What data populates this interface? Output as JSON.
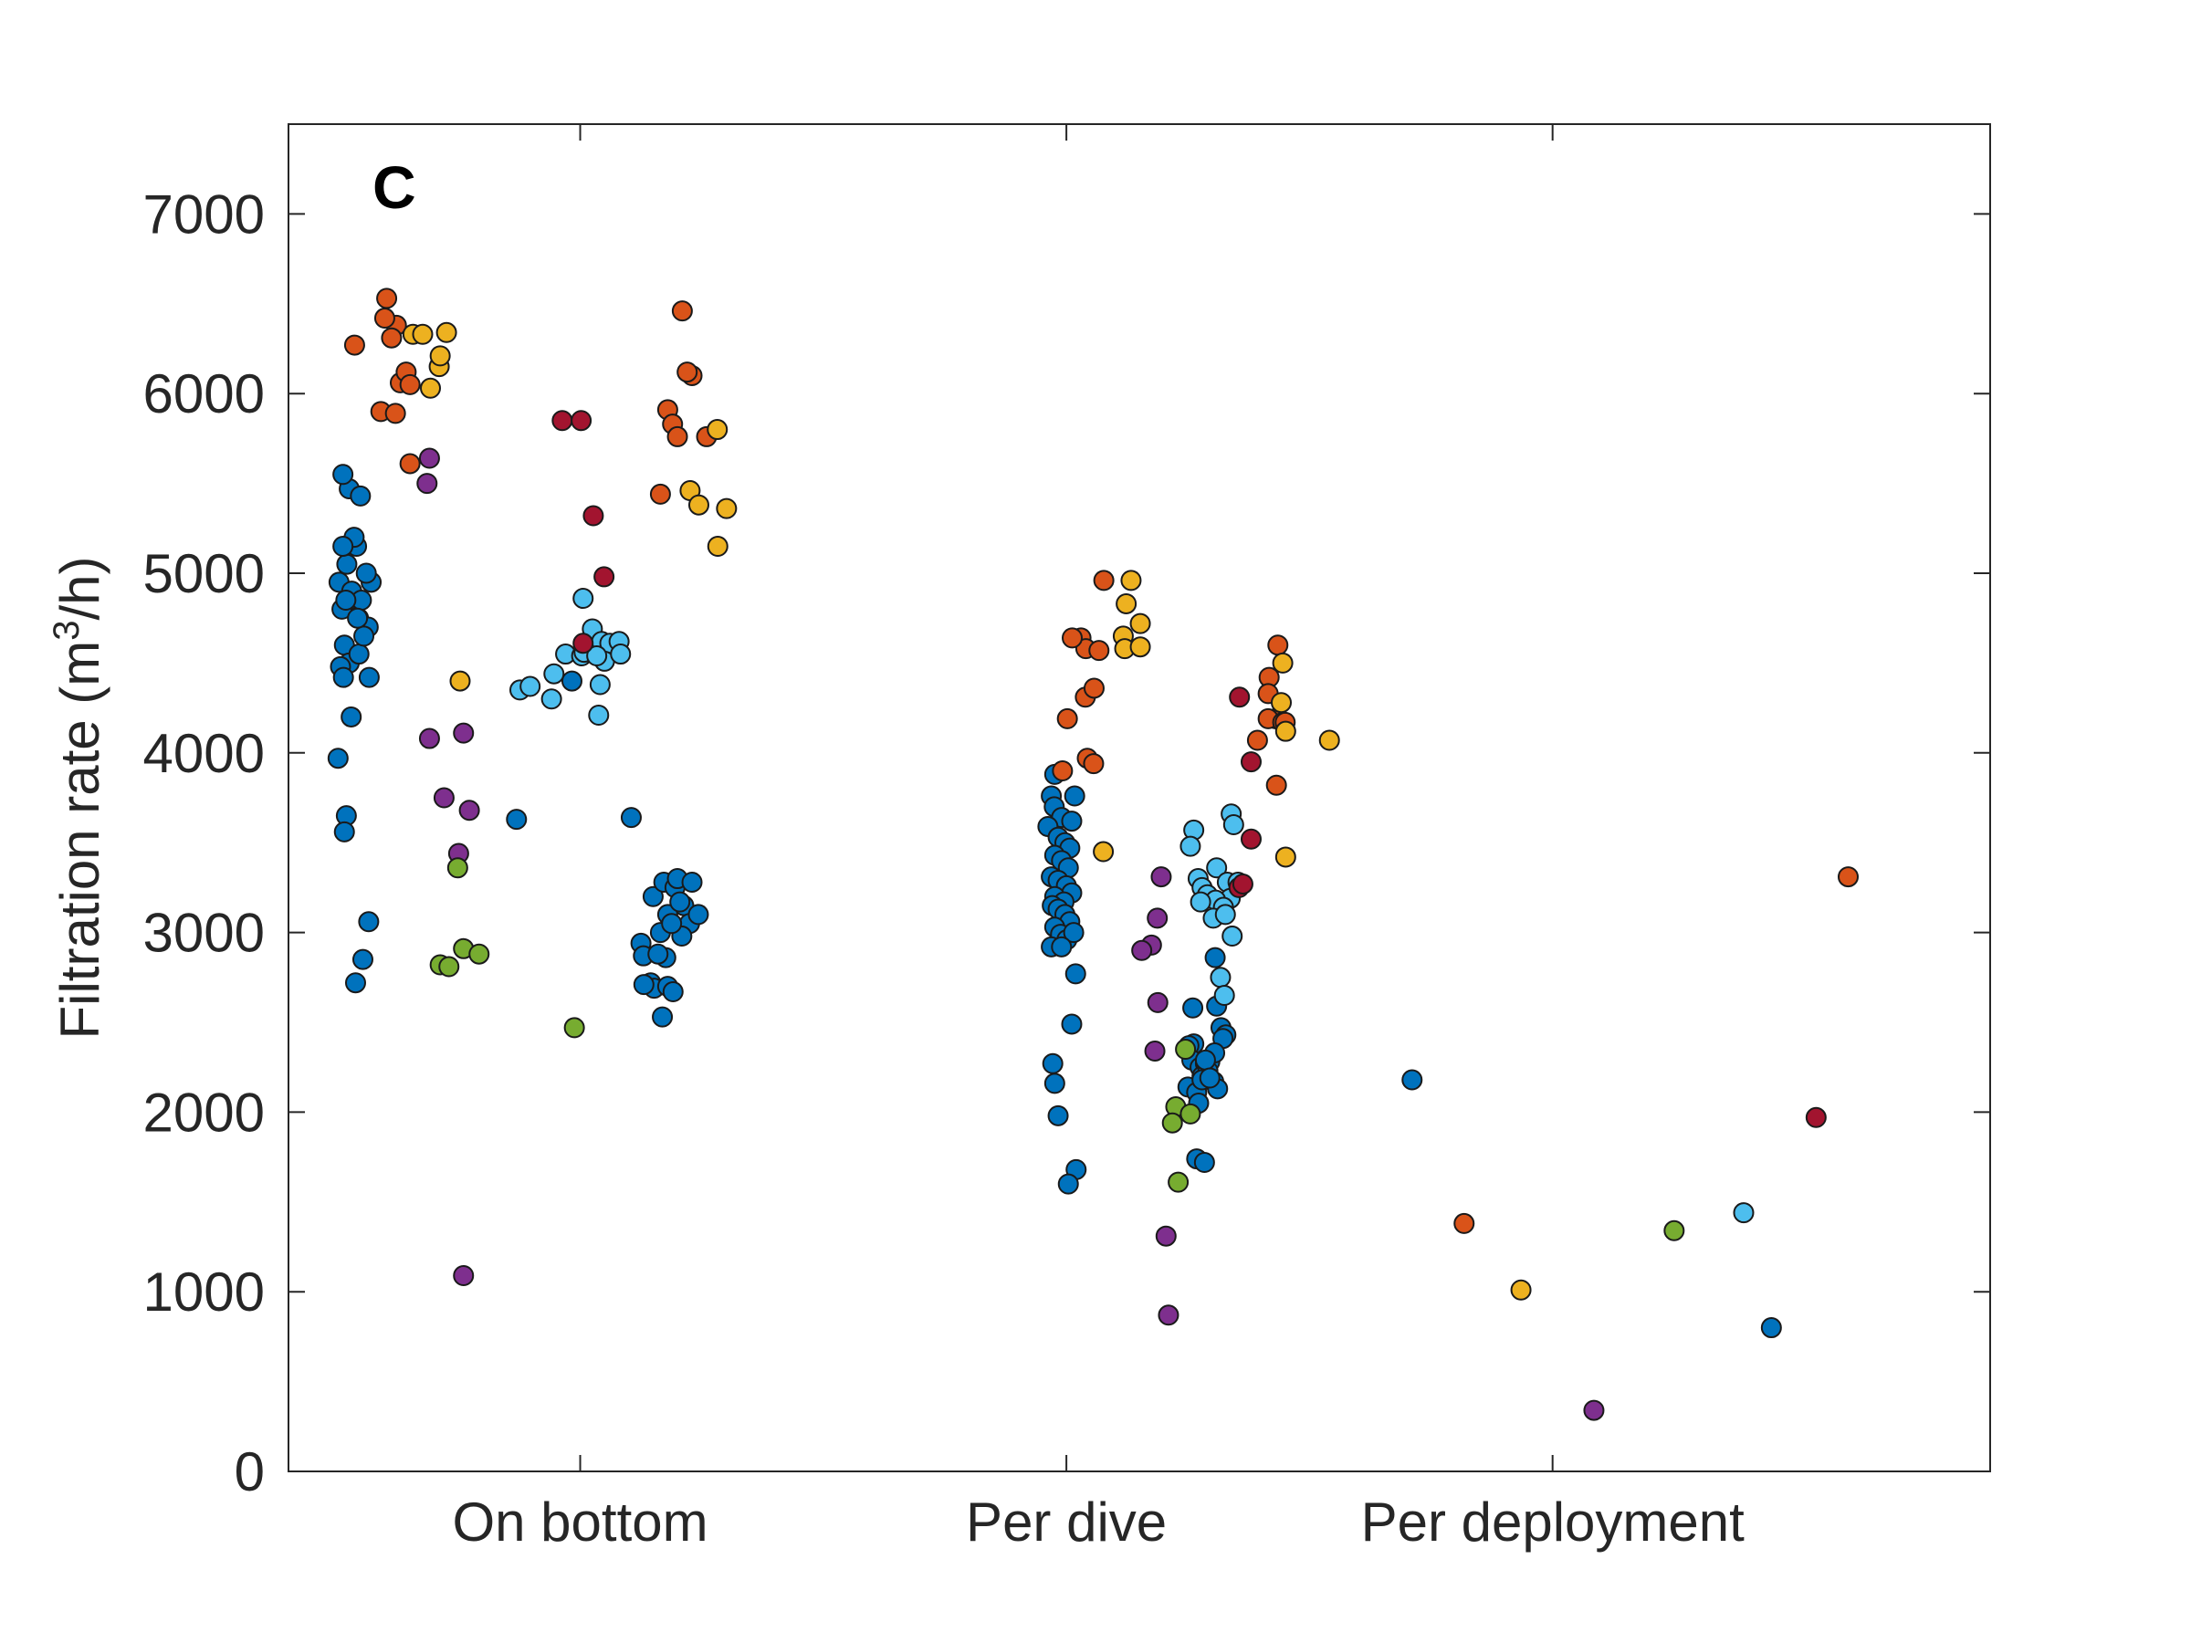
{
  "chart_data": {
    "type": "scatter",
    "panel_label": "C",
    "ylabel_prefix": "Filtration rate (m",
    "ylabel_sup": "3",
    "ylabel_suffix": "/h)",
    "categories": [
      "On bottom",
      "Per dive",
      "Per deployment"
    ],
    "xlim": [
      0.4,
      3.9
    ],
    "ylim": [
      0,
      7500
    ],
    "yticks": [
      0,
      1000,
      2000,
      3000,
      4000,
      5000,
      6000,
      7000
    ],
    "grid": false,
    "colors": {
      "blue": "#0072bd",
      "orange": "#d95319",
      "yellow": "#edb120",
      "purple": "#7e2f8e",
      "green": "#77ac30",
      "lightblue": "#4dbeee",
      "red": "#a2142f"
    },
    "series": [
      {
        "color": "blue",
        "points": [
          [
            0.504,
            4950
          ],
          [
            0.524,
            4850
          ],
          [
            0.544,
            4750
          ],
          [
            0.564,
            4700
          ],
          [
            0.51,
            4800
          ],
          [
            0.53,
            4900
          ],
          [
            0.55,
            4850
          ],
          [
            0.57,
            4950
          ],
          [
            0.52,
            5050
          ],
          [
            0.54,
            5150
          ],
          [
            0.56,
            5000
          ],
          [
            0.535,
            5200
          ],
          [
            0.515,
            4600
          ],
          [
            0.525,
            4500
          ],
          [
            0.545,
            4550
          ],
          [
            0.555,
            4650
          ],
          [
            0.518,
            4850
          ],
          [
            0.542,
            4750
          ],
          [
            0.566,
            4420
          ],
          [
            0.507,
            4480
          ],
          [
            0.513,
            4420
          ],
          [
            0.529,
            4200
          ],
          [
            0.502,
            3970
          ],
          [
            0.519,
            3650
          ],
          [
            0.515,
            3560
          ],
          [
            0.512,
            5150
          ],
          [
            0.525,
            5470
          ],
          [
            0.548,
            5430
          ],
          [
            0.512,
            5550
          ],
          [
            0.565,
            3060
          ],
          [
            0.553,
            2850
          ],
          [
            0.538,
            2720
          ],
          [
            0.983,
            4400
          ],
          [
            0.869,
            3630
          ],
          [
            1.105,
            3640
          ],
          [
            1.15,
            3200
          ],
          [
            1.172,
            3280
          ],
          [
            1.195,
            3250
          ],
          [
            1.213,
            3150
          ],
          [
            1.225,
            3050
          ],
          [
            1.18,
            3100
          ],
          [
            1.2,
            3300
          ],
          [
            1.165,
            3000
          ],
          [
            1.209,
            2980
          ],
          [
            1.188,
            3050
          ],
          [
            1.23,
            3280
          ],
          [
            1.243,
            3100
          ],
          [
            1.205,
            3170
          ],
          [
            1.145,
            2720
          ],
          [
            1.152,
            2690
          ],
          [
            1.176,
            2860
          ],
          [
            1.18,
            2700
          ],
          [
            1.191,
            2670
          ],
          [
            1.169,
            2530
          ],
          [
            1.131,
            2710
          ],
          [
            1.125,
            2940
          ],
          [
            1.13,
            2870
          ],
          [
            1.16,
            2880
          ],
          [
            1.976,
            3880
          ],
          [
            1.969,
            3760
          ],
          [
            1.975,
            3700
          ],
          [
            1.99,
            3640
          ],
          [
            2.011,
            3620
          ],
          [
            1.962,
            3590
          ],
          [
            1.983,
            3530
          ],
          [
            1.997,
            3500
          ],
          [
            2.007,
            3470
          ],
          [
            1.976,
            3430
          ],
          [
            1.99,
            3400
          ],
          [
            2.004,
            3360
          ],
          [
            1.969,
            3310
          ],
          [
            1.983,
            3290
          ],
          [
            2.0,
            3260
          ],
          [
            2.011,
            3220
          ],
          [
            1.976,
            3200
          ],
          [
            1.995,
            3170
          ],
          [
            1.971,
            3150
          ],
          [
            1.983,
            3130
          ],
          [
            1.997,
            3100
          ],
          [
            2.007,
            3060
          ],
          [
            1.976,
            3030
          ],
          [
            1.988,
            2990
          ],
          [
            2.001,
            2960
          ],
          [
            2.015,
            3000
          ],
          [
            1.969,
            2920
          ],
          [
            1.99,
            2920
          ],
          [
            2.019,
            2770
          ],
          [
            2.011,
            2490
          ],
          [
            1.972,
            2270
          ],
          [
            1.976,
            2160
          ],
          [
            1.983,
            1980
          ],
          [
            2.02,
            1680
          ],
          [
            2.004,
            1600
          ],
          [
            2.017,
            3760
          ],
          [
            2.306,
            2860
          ],
          [
            2.309,
            2590
          ],
          [
            2.26,
            2580
          ],
          [
            2.262,
            2380
          ],
          [
            2.318,
            2470
          ],
          [
            2.328,
            2430
          ],
          [
            2.322,
            2410
          ],
          [
            2.252,
            2370
          ],
          [
            2.258,
            2290
          ],
          [
            2.275,
            2250
          ],
          [
            2.286,
            2270
          ],
          [
            2.295,
            2280
          ],
          [
            2.305,
            2330
          ],
          [
            2.25,
            2140
          ],
          [
            2.268,
            2110
          ],
          [
            2.279,
            2200
          ],
          [
            2.291,
            2230
          ],
          [
            2.303,
            2170
          ],
          [
            2.311,
            2130
          ],
          [
            2.272,
            2050
          ],
          [
            2.268,
            1740
          ],
          [
            2.284,
            1720
          ],
          [
            2.286,
            2290
          ],
          [
            2.279,
            2180
          ],
          [
            2.295,
            2190
          ],
          [
            2.711,
            2180
          ],
          [
            3.45,
            800
          ]
        ]
      },
      {
        "color": "orange",
        "points": [
          [
            0.536,
            6270
          ],
          [
            0.602,
            6530
          ],
          [
            0.622,
            6380
          ],
          [
            0.598,
            6420
          ],
          [
            0.612,
            6310
          ],
          [
            0.63,
            6060
          ],
          [
            0.642,
            6120
          ],
          [
            0.65,
            6050
          ],
          [
            0.59,
            5900
          ],
          [
            0.62,
            5890
          ],
          [
            0.65,
            5610
          ],
          [
            1.21,
            6460
          ],
          [
            1.18,
            5910
          ],
          [
            1.19,
            5830
          ],
          [
            1.2,
            5760
          ],
          [
            1.23,
            6100
          ],
          [
            1.22,
            6120
          ],
          [
            1.165,
            5440
          ],
          [
            1.26,
            5760
          ],
          [
            2.077,
            4960
          ],
          [
            2.03,
            4640
          ],
          [
            2.04,
            4580
          ],
          [
            2.067,
            4570
          ],
          [
            2.039,
            4310
          ],
          [
            2.057,
            4360
          ],
          [
            2.002,
            4190
          ],
          [
            1.992,
            3900
          ],
          [
            2.043,
            3970
          ],
          [
            2.056,
            3940
          ],
          [
            2.012,
            4640
          ],
          [
            2.435,
            4600
          ],
          [
            2.417,
            4420
          ],
          [
            2.415,
            4330
          ],
          [
            2.43,
            4190
          ],
          [
            2.415,
            4190
          ],
          [
            2.445,
            4170
          ],
          [
            2.45,
            4170
          ],
          [
            2.432,
            3820
          ],
          [
            2.393,
            4070
          ],
          [
            2.818,
            1380
          ],
          [
            3.608,
            3310
          ]
        ]
      },
      {
        "color": "yellow",
        "points": [
          [
            0.656,
            6330
          ],
          [
            0.676,
            6330
          ],
          [
            0.692,
            6030
          ],
          [
            0.71,
            6150
          ],
          [
            0.712,
            6210
          ],
          [
            0.725,
            6340
          ],
          [
            1.226,
            5460
          ],
          [
            1.282,
            5800
          ],
          [
            1.244,
            5380
          ],
          [
            1.301,
            5360
          ],
          [
            1.283,
            5150
          ],
          [
            0.753,
            4400
          ],
          [
            2.133,
            4960
          ],
          [
            2.123,
            4830
          ],
          [
            2.152,
            4720
          ],
          [
            2.117,
            4650
          ],
          [
            2.12,
            4580
          ],
          [
            2.152,
            4590
          ],
          [
            2.076,
            3450
          ],
          [
            2.445,
            4500
          ],
          [
            2.451,
            4120
          ],
          [
            2.442,
            4280
          ],
          [
            2.541,
            4070
          ],
          [
            2.451,
            3420
          ],
          [
            2.935,
            1010
          ]
        ]
      },
      {
        "color": "purple",
        "points": [
          [
            0.69,
            5640
          ],
          [
            0.685,
            5500
          ],
          [
            0.69,
            4080
          ],
          [
            0.76,
            4110
          ],
          [
            0.72,
            3750
          ],
          [
            0.772,
            3680
          ],
          [
            0.75,
            3440
          ],
          [
            0.76,
            1090
          ],
          [
            2.195,
            3310
          ],
          [
            2.187,
            3080
          ],
          [
            2.175,
            2930
          ],
          [
            2.155,
            2900
          ],
          [
            2.188,
            2610
          ],
          [
            2.182,
            2340
          ],
          [
            2.205,
            1310
          ],
          [
            2.21,
            870
          ],
          [
            3.085,
            340
          ]
        ]
      },
      {
        "color": "green",
        "points": [
          [
            0.748,
            3360
          ],
          [
            0.712,
            2820
          ],
          [
            0.73,
            2810
          ],
          [
            0.76,
            2910
          ],
          [
            0.792,
            2880
          ],
          [
            0.988,
            2470
          ],
          [
            2.245,
            2350
          ],
          [
            2.225,
            2030
          ],
          [
            2.218,
            1940
          ],
          [
            2.255,
            1990
          ],
          [
            2.23,
            1610
          ],
          [
            3.25,
            1340
          ]
        ]
      },
      {
        "color": "lightblue",
        "points": [
          [
            0.876,
            4350
          ],
          [
            0.897,
            4370
          ],
          [
            0.941,
            4300
          ],
          [
            0.946,
            4440
          ],
          [
            0.97,
            4550
          ],
          [
            1.003,
            4540
          ],
          [
            1.008,
            4560
          ],
          [
            1.017,
            4620
          ],
          [
            1.025,
            4690
          ],
          [
            1.044,
            4620
          ],
          [
            1.061,
            4610
          ],
          [
            1.05,
            4510
          ],
          [
            1.08,
            4620
          ],
          [
            1.083,
            4550
          ],
          [
            1.034,
            4540
          ],
          [
            1.041,
            4380
          ],
          [
            1.038,
            4210
          ],
          [
            1.006,
            4860
          ],
          [
            2.339,
            3660
          ],
          [
            2.344,
            3600
          ],
          [
            2.262,
            3570
          ],
          [
            2.255,
            3480
          ],
          [
            2.309,
            3360
          ],
          [
            2.331,
            3280
          ],
          [
            2.337,
            3190
          ],
          [
            2.271,
            3300
          ],
          [
            2.279,
            3250
          ],
          [
            2.29,
            3210
          ],
          [
            2.307,
            3180
          ],
          [
            2.323,
            3140
          ],
          [
            2.353,
            3280
          ],
          [
            2.276,
            3170
          ],
          [
            2.302,
            3080
          ],
          [
            2.327,
            3100
          ],
          [
            2.341,
            2980
          ],
          [
            2.317,
            2750
          ],
          [
            2.325,
            2650
          ],
          [
            3.393,
            1440
          ]
        ]
      },
      {
        "color": "red",
        "points": [
          [
            0.963,
            5850
          ],
          [
            1.002,
            5850
          ],
          [
            1.027,
            5320
          ],
          [
            1.049,
            4980
          ],
          [
            1.006,
            4610
          ],
          [
            2.356,
            4310
          ],
          [
            2.38,
            3950
          ],
          [
            2.38,
            3520
          ],
          [
            2.355,
            3250
          ],
          [
            2.363,
            3270
          ],
          [
            3.542,
            1970
          ]
        ]
      }
    ]
  }
}
